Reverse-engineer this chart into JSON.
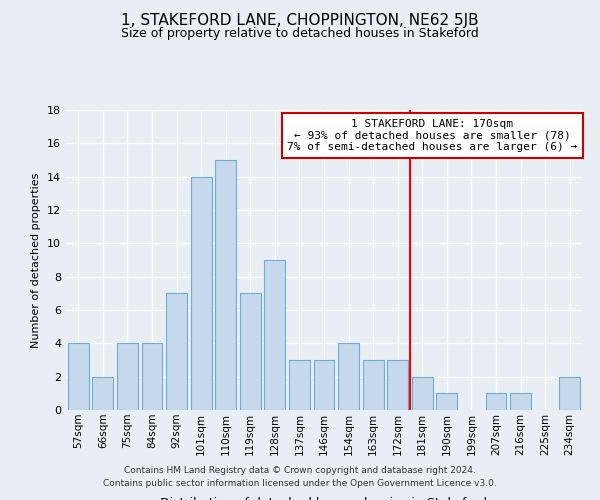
{
  "title": "1, STAKEFORD LANE, CHOPPINGTON, NE62 5JB",
  "subtitle": "Size of property relative to detached houses in Stakeford",
  "xlabel": "Distribution of detached houses by size in Stakeford",
  "ylabel": "Number of detached properties",
  "categories": [
    "57sqm",
    "66sqm",
    "75sqm",
    "84sqm",
    "92sqm",
    "101sqm",
    "110sqm",
    "119sqm",
    "128sqm",
    "137sqm",
    "146sqm",
    "154sqm",
    "163sqm",
    "172sqm",
    "181sqm",
    "190sqm",
    "199sqm",
    "207sqm",
    "216sqm",
    "225sqm",
    "234sqm"
  ],
  "values": [
    4,
    2,
    4,
    4,
    7,
    14,
    15,
    7,
    9,
    3,
    3,
    4,
    3,
    3,
    2,
    1,
    0,
    1,
    1,
    0,
    2
  ],
  "bar_color": "#c6d9ec",
  "bar_edge_color": "#6aaed6",
  "background_color": "#e8eef4",
  "grid_color": "#ffffff",
  "redline_index": 13,
  "annotation_text": "1 STAKEFORD LANE: 170sqm\n← 93% of detached houses are smaller (78)\n7% of semi-detached houses are larger (6) →",
  "annotation_box_color": "#ffffff",
  "annotation_box_edge": "#cc0000",
  "footer_line1": "Contains HM Land Registry data © Crown copyright and database right 2024.",
  "footer_line2": "Contains public sector information licensed under the Open Government Licence v3.0.",
  "ylim": [
    0,
    18
  ],
  "yticks": [
    0,
    2,
    4,
    6,
    8,
    10,
    12,
    14,
    16,
    18
  ]
}
